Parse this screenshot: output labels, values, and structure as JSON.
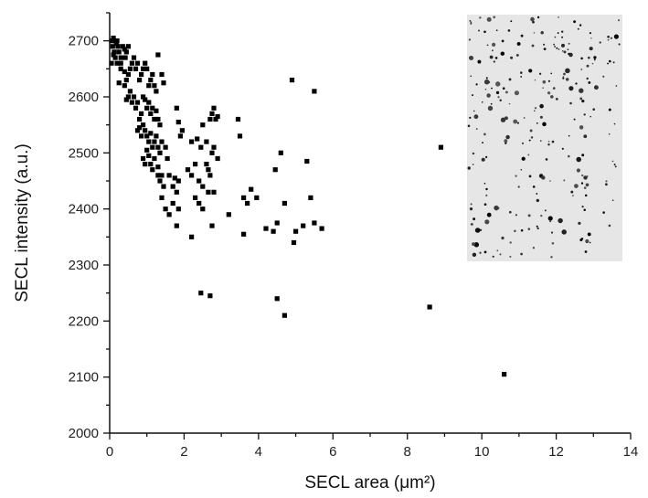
{
  "chart_data": {
    "type": "scatter",
    "title": "",
    "xlabel": "SECL area (μm²)",
    "ylabel": "SECL intensity (a.u.)",
    "xlim": [
      0,
      14
    ],
    "ylim": [
      2000,
      2750
    ],
    "x_ticks": [
      "0",
      "2",
      "4",
      "6",
      "8",
      "10",
      "12",
      "14"
    ],
    "y_ticks": [
      "2000",
      "2100",
      "2200",
      "2300",
      "2400",
      "2500",
      "2600",
      "2700"
    ],
    "grid": false,
    "legend": "none",
    "marker_color": "#000000",
    "inset": "grayscale micrograph of dark dots on light background, top-right",
    "points": [
      [
        0.05,
        2700
      ],
      [
        0.08,
        2690
      ],
      [
        0.1,
        2705
      ],
      [
        0.12,
        2680
      ],
      [
        0.15,
        2700
      ],
      [
        0.15,
        2670
      ],
      [
        0.18,
        2695
      ],
      [
        0.2,
        2660
      ],
      [
        0.22,
        2690
      ],
      [
        0.25,
        2680
      ],
      [
        0.3,
        2670
      ],
      [
        0.3,
        2650
      ],
      [
        0.35,
        2690
      ],
      [
        0.4,
        2685
      ],
      [
        0.42,
        2670
      ],
      [
        0.45,
        2680
      ],
      [
        0.5,
        2690
      ],
      [
        0.05,
        2660
      ],
      [
        0.1,
        2675
      ],
      [
        0.2,
        2700
      ],
      [
        0.25,
        2625
      ],
      [
        0.3,
        2660
      ],
      [
        0.4,
        2645
      ],
      [
        0.45,
        2630
      ],
      [
        0.5,
        2640
      ],
      [
        0.55,
        2650
      ],
      [
        0.6,
        2660
      ],
      [
        0.65,
        2670
      ],
      [
        0.7,
        2650
      ],
      [
        0.75,
        2660
      ],
      [
        0.8,
        2630
      ],
      [
        0.85,
        2640
      ],
      [
        0.9,
        2650
      ],
      [
        0.95,
        2660
      ],
      [
        1.0,
        2650
      ],
      [
        1.05,
        2620
      ],
      [
        1.1,
        2630
      ],
      [
        1.15,
        2640
      ],
      [
        1.2,
        2620
      ],
      [
        1.25,
        2610
      ],
      [
        0.4,
        2620
      ],
      [
        0.45,
        2595
      ],
      [
        0.5,
        2600
      ],
      [
        0.55,
        2610
      ],
      [
        0.6,
        2590
      ],
      [
        0.65,
        2600
      ],
      [
        0.7,
        2580
      ],
      [
        0.75,
        2590
      ],
      [
        0.8,
        2560
      ],
      [
        0.85,
        2570
      ],
      [
        0.9,
        2600
      ],
      [
        0.95,
        2595
      ],
      [
        1.0,
        2580
      ],
      [
        1.05,
        2590
      ],
      [
        1.1,
        2570
      ],
      [
        1.15,
        2580
      ],
      [
        1.2,
        2560
      ],
      [
        1.25,
        2575
      ],
      [
        1.3,
        2560
      ],
      [
        1.35,
        2550
      ],
      [
        0.75,
        2540
      ],
      [
        0.8,
        2545
      ],
      [
        0.85,
        2530
      ],
      [
        0.9,
        2550
      ],
      [
        0.95,
        2540
      ],
      [
        1.0,
        2530
      ],
      [
        1.05,
        2520
      ],
      [
        1.1,
        2535
      ],
      [
        1.15,
        2510
      ],
      [
        1.2,
        2520
      ],
      [
        1.25,
        2530
      ],
      [
        1.3,
        2510
      ],
      [
        1.35,
        2500
      ],
      [
        1.4,
        2520
      ],
      [
        0.9,
        2490
      ],
      [
        0.95,
        2480
      ],
      [
        1.0,
        2505
      ],
      [
        1.05,
        2495
      ],
      [
        1.1,
        2480
      ],
      [
        1.15,
        2470
      ],
      [
        1.2,
        2490
      ],
      [
        1.3,
        2475
      ],
      [
        1.4,
        2460
      ],
      [
        1.5,
        2510
      ],
      [
        1.55,
        2490
      ],
      [
        1.6,
        2460
      ],
      [
        1.7,
        2440
      ],
      [
        1.75,
        2455
      ],
      [
        1.8,
        2430
      ],
      [
        1.85,
        2450
      ],
      [
        1.3,
        2675
      ],
      [
        1.4,
        2640
      ],
      [
        1.45,
        2625
      ],
      [
        1.3,
        2460
      ],
      [
        1.35,
        2450
      ],
      [
        1.4,
        2420
      ],
      [
        1.45,
        2440
      ],
      [
        1.5,
        2400
      ],
      [
        1.6,
        2390
      ],
      [
        1.7,
        2410
      ],
      [
        1.8,
        2370
      ],
      [
        1.85,
        2400
      ],
      [
        1.8,
        2580
      ],
      [
        1.85,
        2555
      ],
      [
        1.9,
        2530
      ],
      [
        1.95,
        2540
      ],
      [
        2.1,
        2470
      ],
      [
        2.2,
        2460
      ],
      [
        2.3,
        2480
      ],
      [
        2.2,
        2520
      ],
      [
        2.35,
        2525
      ],
      [
        2.45,
        2510
      ],
      [
        2.5,
        2550
      ],
      [
        2.6,
        2520
      ],
      [
        2.7,
        2560
      ],
      [
        2.8,
        2580
      ],
      [
        2.85,
        2560
      ],
      [
        2.75,
        2570
      ],
      [
        2.9,
        2565
      ],
      [
        2.6,
        2480
      ],
      [
        2.65,
        2470
      ],
      [
        2.75,
        2500
      ],
      [
        2.8,
        2510
      ],
      [
        2.9,
        2490
      ],
      [
        2.4,
        2450
      ],
      [
        2.5,
        2440
      ],
      [
        2.65,
        2430
      ],
      [
        2.7,
        2460
      ],
      [
        2.8,
        2430
      ],
      [
        2.3,
        2420
      ],
      [
        2.4,
        2410
      ],
      [
        2.5,
        2400
      ],
      [
        2.2,
        2350
      ],
      [
        2.75,
        2370
      ],
      [
        3.2,
        2390
      ],
      [
        3.45,
        2560
      ],
      [
        3.5,
        2530
      ],
      [
        3.6,
        2355
      ],
      [
        3.6,
        2420
      ],
      [
        3.7,
        2410
      ],
      [
        3.8,
        2435
      ],
      [
        3.95,
        2420
      ],
      [
        4.2,
        2365
      ],
      [
        4.4,
        2360
      ],
      [
        4.5,
        2375
      ],
      [
        4.45,
        2470
      ],
      [
        4.6,
        2500
      ],
      [
        4.7,
        2410
      ],
      [
        4.9,
        2630
      ],
      [
        5.0,
        2360
      ],
      [
        4.95,
        2340
      ],
      [
        5.2,
        2370
      ],
      [
        5.3,
        2485
      ],
      [
        5.4,
        2420
      ],
      [
        5.5,
        2610
      ],
      [
        5.5,
        2375
      ],
      [
        5.7,
        2365
      ],
      [
        2.45,
        2250
      ],
      [
        2.7,
        2245
      ],
      [
        4.5,
        2240
      ],
      [
        4.7,
        2210
      ],
      [
        8.6,
        2225
      ],
      [
        8.9,
        2510
      ],
      [
        10.6,
        2105
      ]
    ]
  }
}
